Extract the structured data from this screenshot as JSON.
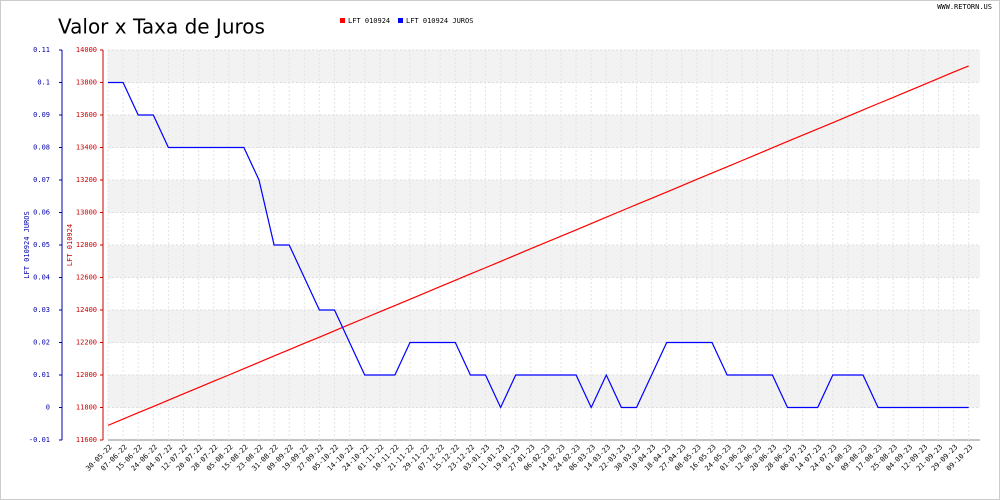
{
  "chart_data": {
    "type": "line",
    "title": "Valor x Taxa de Juros",
    "watermark": "WWW.RETORN.US",
    "ylabel": "LFT 010924",
    "y2label": "LFT 010924 JUROS",
    "categories": [
      "30-05-22",
      "07-06-22",
      "15-06-22",
      "24-06-22",
      "04-07-22",
      "12-07-22",
      "20-07-22",
      "28-07-22",
      "05-08-22",
      "15-08-22",
      "23-08-22",
      "31-08-22",
      "09-09-22",
      "19-09-22",
      "27-09-22",
      "05-10-22",
      "14-10-22",
      "24-10-22",
      "01-11-22",
      "10-11-22",
      "21-11-22",
      "29-11-22",
      "07-12-22",
      "15-12-22",
      "23-12-22",
      "03-01-23",
      "11-01-23",
      "19-01-23",
      "27-01-23",
      "06-02-23",
      "14-02-23",
      "24-02-23",
      "06-03-23",
      "14-03-23",
      "22-03-23",
      "30-03-23",
      "10-04-23",
      "18-04-23",
      "27-04-23",
      "08-05-23",
      "16-05-23",
      "24-05-23",
      "01-06-23",
      "12-06-23",
      "20-06-23",
      "28-06-23",
      "06-07-23",
      "14-07-23",
      "24-07-23",
      "01-08-23",
      "09-08-23",
      "17-08-23",
      "25-08-23",
      "04-09-23",
      "12-09-23",
      "21-09-23",
      "29-09-23",
      "09-10-23"
    ],
    "series": [
      {
        "name": "LFT 010924",
        "color": "#ff0000",
        "axis": "y",
        "values": [
          11690,
          11729,
          11768,
          11806,
          11845,
          11884,
          11923,
          11962,
          12000,
          12039,
          12078,
          12117,
          12156,
          12195,
          12233,
          12272,
          12311,
          12350,
          12389,
          12427,
          12466,
          12505,
          12544,
          12583,
          12622,
          12660,
          12699,
          12738,
          12777,
          12816,
          12854,
          12893,
          12932,
          12971,
          13010,
          13049,
          13087,
          13126,
          13165,
          13204,
          13243,
          13281,
          13320,
          13359,
          13398,
          13437,
          13476,
          13514,
          13553,
          13592,
          13631,
          13670,
          13708,
          13747,
          13786,
          13825,
          13864,
          13902
        ]
      },
      {
        "name": "LFT 010924 JUROS",
        "color": "#0000ff",
        "axis": "y2",
        "values": [
          0.1,
          0.1,
          0.09,
          0.09,
          0.08,
          0.08,
          0.08,
          0.08,
          0.08,
          0.08,
          0.07,
          0.05,
          0.05,
          0.04,
          0.03,
          0.03,
          0.02,
          0.01,
          0.01,
          0.01,
          0.02,
          0.02,
          0.02,
          0.02,
          0.01,
          0.01,
          0,
          0.01,
          0.01,
          0.01,
          0.01,
          0.01,
          0,
          0.01,
          0,
          0,
          0.01,
          0.02,
          0.02,
          0.02,
          0.02,
          0.01,
          0.01,
          0.01,
          0.01,
          0,
          0,
          0,
          0.01,
          0.01,
          0.01,
          0,
          0,
          0,
          0,
          0,
          0,
          0
        ]
      }
    ],
    "ylim": [
      11600,
      14000
    ],
    "yticks": [
      11600,
      11800,
      12000,
      12200,
      12400,
      12600,
      12800,
      13000,
      13200,
      13400,
      13600,
      13800,
      14000
    ],
    "y2lim": [
      -0.01,
      0.11
    ],
    "y2ticks": [
      -0.01,
      0,
      0.01,
      0.02,
      0.03,
      0.04,
      0.05,
      0.06,
      0.07,
      0.08,
      0.09,
      0.1,
      0.11
    ],
    "grid": true
  }
}
